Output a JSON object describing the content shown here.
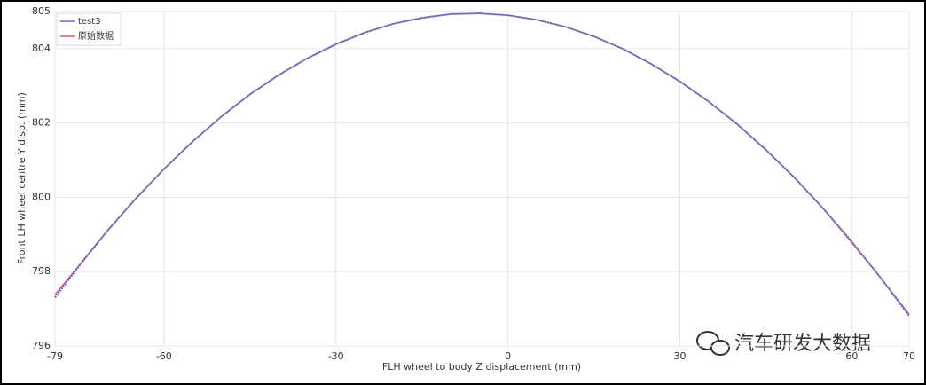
{
  "chart_data": {
    "type": "line",
    "x_label": "FLH wheel to body Z displacement (mm)",
    "y_label": "Front LH wheel centre Y disp. (mm)",
    "x": [
      -79,
      -75,
      -70,
      -65,
      -60,
      -55,
      -50,
      -45,
      -40,
      -35,
      -30,
      -25,
      -20,
      -15,
      -10,
      -5,
      0,
      5,
      10,
      15,
      20,
      25,
      30,
      35,
      40,
      45,
      50,
      55,
      60,
      65,
      70
    ],
    "series": [
      {
        "name": "原始数据",
        "color": "#e8535a",
        "values": [
          797.38,
          798.13,
          799.08,
          799.95,
          800.76,
          801.5,
          802.17,
          802.77,
          803.29,
          803.74,
          804.12,
          804.43,
          804.67,
          804.83,
          804.93,
          804.95,
          804.9,
          804.78,
          804.59,
          804.33,
          804.0,
          803.59,
          803.12,
          802.58,
          801.97,
          801.28,
          800.53,
          799.7,
          798.78,
          797.84,
          796.85
        ]
      },
      {
        "name": "test3",
        "color": "#4f6fd6",
        "values": [
          797.3,
          798.11,
          799.07,
          799.95,
          800.76,
          801.5,
          802.17,
          802.77,
          803.29,
          803.74,
          804.12,
          804.43,
          804.67,
          804.83,
          804.93,
          804.95,
          804.9,
          804.78,
          804.59,
          804.33,
          804.0,
          803.59,
          803.12,
          802.58,
          801.97,
          801.28,
          800.53,
          799.7,
          798.81,
          797.84,
          796.81
        ]
      }
    ],
    "legend_order": [
      1,
      0
    ],
    "xlim": [
      -79,
      70
    ],
    "xticks": [
      -79,
      -60,
      -30,
      0,
      30,
      60,
      70
    ],
    "ylim": [
      796,
      805
    ],
    "yticks": [
      796,
      798,
      800,
      802,
      804,
      805
    ],
    "grid": true,
    "legend": "upper-left",
    "watermark": "汽车研发大数据"
  }
}
